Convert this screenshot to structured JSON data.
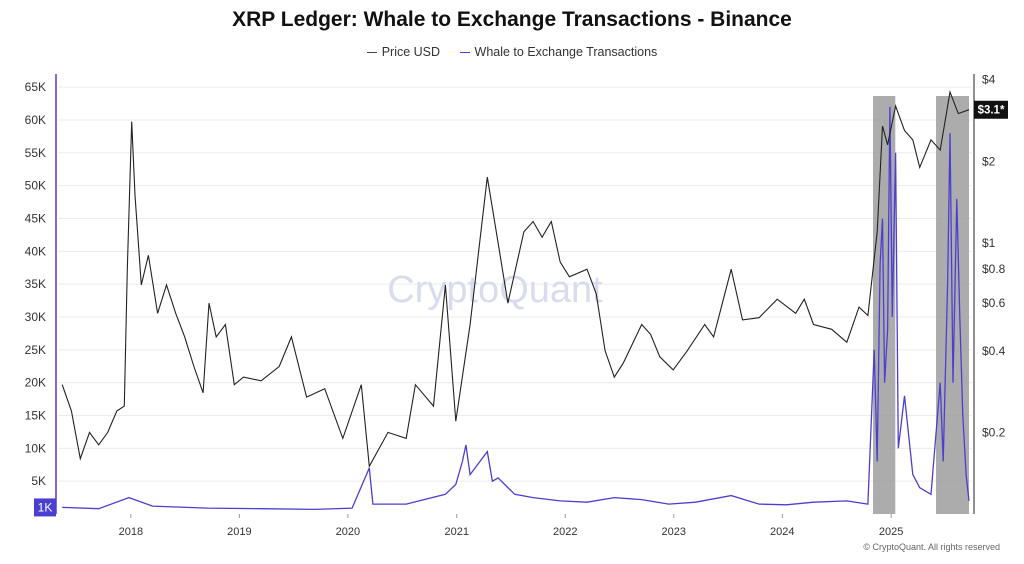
{
  "chart_data": {
    "type": "line",
    "title": "XRP Ledger: Whale to Exchange Transactions - Binance",
    "watermark": "CryptoQuant",
    "credit": "© CryptoQuant. All rights reserved",
    "legend_position": "top-center",
    "grid": true,
    "colors": {
      "price": "#222222",
      "whale": "#4b3fd1",
      "highlight": "#9e9e9e"
    },
    "x_axis": {
      "type": "date",
      "range": [
        "2017-05-01",
        "2025-09-30"
      ],
      "ticks": [
        "2018",
        "2019",
        "2020",
        "2021",
        "2022",
        "2023",
        "2024",
        "2025"
      ]
    },
    "left_axis": {
      "range": [
        0,
        67000
      ],
      "ticks": [
        "5K",
        "10K",
        "15K",
        "20K",
        "25K",
        "30K",
        "35K",
        "40K",
        "45K",
        "50K",
        "55K",
        "60K",
        "65K"
      ],
      "highlighted_tick": "1K"
    },
    "right_axis": {
      "scale": "log",
      "range": [
        0.1,
        4.2
      ],
      "ticks": [
        "$0.2",
        "$0.4",
        "$0.6",
        "$0.8",
        "$1",
        "$2",
        "$4"
      ],
      "last_value_label": "$3.1*"
    },
    "highlight_ranges": [
      [
        "2024-11-01",
        "2025-01-15"
      ],
      [
        "2025-06-01",
        "2025-09-20"
      ]
    ],
    "series": [
      {
        "name": "Price USD",
        "axis": "right",
        "values": [
          [
            "2017-05-15",
            0.3
          ],
          [
            "2017-06-15",
            0.24
          ],
          [
            "2017-07-15",
            0.16
          ],
          [
            "2017-08-15",
            0.2
          ],
          [
            "2017-09-15",
            0.18
          ],
          [
            "2017-10-15",
            0.2
          ],
          [
            "2017-11-15",
            0.24
          ],
          [
            "2017-12-10",
            0.25
          ],
          [
            "2017-12-20",
            0.8
          ],
          [
            "2018-01-04",
            2.8
          ],
          [
            "2018-01-15",
            1.5
          ],
          [
            "2018-02-05",
            0.7
          ],
          [
            "2018-03-01",
            0.9
          ],
          [
            "2018-04-01",
            0.55
          ],
          [
            "2018-05-01",
            0.7
          ],
          [
            "2018-06-01",
            0.55
          ],
          [
            "2018-07-01",
            0.45
          ],
          [
            "2018-08-01",
            0.35
          ],
          [
            "2018-09-01",
            0.28
          ],
          [
            "2018-09-21",
            0.6
          ],
          [
            "2018-10-15",
            0.45
          ],
          [
            "2018-11-15",
            0.5
          ],
          [
            "2018-12-15",
            0.3
          ],
          [
            "2019-01-15",
            0.32
          ],
          [
            "2019-03-15",
            0.31
          ],
          [
            "2019-05-15",
            0.35
          ],
          [
            "2019-06-25",
            0.45
          ],
          [
            "2019-08-15",
            0.27
          ],
          [
            "2019-10-15",
            0.29
          ],
          [
            "2019-12-15",
            0.19
          ],
          [
            "2020-02-15",
            0.3
          ],
          [
            "2020-03-13",
            0.15
          ],
          [
            "2020-05-15",
            0.2
          ],
          [
            "2020-07-15",
            0.19
          ],
          [
            "2020-08-15",
            0.3
          ],
          [
            "2020-10-15",
            0.25
          ],
          [
            "2020-11-24",
            0.7
          ],
          [
            "2020-12-29",
            0.22
          ],
          [
            "2021-02-15",
            0.5
          ],
          [
            "2021-04-14",
            1.75
          ],
          [
            "2021-05-20",
            1.0
          ],
          [
            "2021-06-22",
            0.6
          ],
          [
            "2021-08-15",
            1.1
          ],
          [
            "2021-09-15",
            1.2
          ],
          [
            "2021-10-15",
            1.05
          ],
          [
            "2021-11-15",
            1.2
          ],
          [
            "2021-12-15",
            0.85
          ],
          [
            "2022-01-15",
            0.75
          ],
          [
            "2022-03-15",
            0.8
          ],
          [
            "2022-04-15",
            0.65
          ],
          [
            "2022-05-15",
            0.4
          ],
          [
            "2022-06-15",
            0.32
          ],
          [
            "2022-07-15",
            0.36
          ],
          [
            "2022-09-15",
            0.5
          ],
          [
            "2022-10-15",
            0.46
          ],
          [
            "2022-11-15",
            0.38
          ],
          [
            "2022-12-30",
            0.34
          ],
          [
            "2023-02-15",
            0.4
          ],
          [
            "2023-04-15",
            0.5
          ],
          [
            "2023-05-15",
            0.45
          ],
          [
            "2023-07-13",
            0.8
          ],
          [
            "2023-08-20",
            0.52
          ],
          [
            "2023-10-15",
            0.53
          ],
          [
            "2023-12-15",
            0.62
          ],
          [
            "2024-02-15",
            0.55
          ],
          [
            "2024-03-15",
            0.62
          ],
          [
            "2024-04-15",
            0.5
          ],
          [
            "2024-06-15",
            0.48
          ],
          [
            "2024-08-05",
            0.43
          ],
          [
            "2024-09-15",
            0.58
          ],
          [
            "2024-10-15",
            0.54
          ],
          [
            "2024-11-15",
            1.1
          ],
          [
            "2024-12-03",
            2.7
          ],
          [
            "2024-12-20",
            2.3
          ],
          [
            "2025-01-16",
            3.2
          ],
          [
            "2025-02-15",
            2.6
          ],
          [
            "2025-03-15",
            2.4
          ],
          [
            "2025-04-07",
            1.9
          ],
          [
            "2025-05-15",
            2.4
          ],
          [
            "2025-06-15",
            2.2
          ],
          [
            "2025-07-18",
            3.6
          ],
          [
            "2025-08-15",
            3.0
          ],
          [
            "2025-09-20",
            3.1
          ]
        ]
      },
      {
        "name": "Whale to Exchange Transactions",
        "axis": "left",
        "values": [
          [
            "2017-05-15",
            1000
          ],
          [
            "2017-09-15",
            800
          ],
          [
            "2017-12-25",
            2500
          ],
          [
            "2018-03-15",
            1200
          ],
          [
            "2018-09-15",
            900
          ],
          [
            "2019-03-15",
            800
          ],
          [
            "2019-09-15",
            700
          ],
          [
            "2020-01-15",
            900
          ],
          [
            "2020-03-13",
            7000
          ],
          [
            "2020-03-25",
            1500
          ],
          [
            "2020-07-15",
            1500
          ],
          [
            "2020-11-24",
            3000
          ],
          [
            "2020-12-29",
            4500
          ],
          [
            "2021-01-20",
            8000
          ],
          [
            "2021-02-01",
            10500
          ],
          [
            "2021-02-15",
            6000
          ],
          [
            "2021-04-14",
            9500
          ],
          [
            "2021-05-01",
            5000
          ],
          [
            "2021-05-20",
            5500
          ],
          [
            "2021-07-15",
            3000
          ],
          [
            "2021-09-15",
            2500
          ],
          [
            "2021-12-15",
            2000
          ],
          [
            "2022-03-15",
            1800
          ],
          [
            "2022-06-15",
            2500
          ],
          [
            "2022-09-15",
            2200
          ],
          [
            "2022-12-15",
            1500
          ],
          [
            "2023-03-15",
            1800
          ],
          [
            "2023-07-13",
            2800
          ],
          [
            "2023-10-15",
            1500
          ],
          [
            "2024-01-15",
            1400
          ],
          [
            "2024-04-15",
            1800
          ],
          [
            "2024-08-05",
            2000
          ],
          [
            "2024-10-15",
            1500
          ],
          [
            "2024-11-05",
            25000
          ],
          [
            "2024-11-15",
            8000
          ],
          [
            "2024-11-25",
            38000
          ],
          [
            "2024-12-03",
            45000
          ],
          [
            "2024-12-10",
            20000
          ],
          [
            "2024-12-20",
            28000
          ],
          [
            "2024-12-28",
            62000
          ],
          [
            "2025-01-05",
            30000
          ],
          [
            "2025-01-16",
            55000
          ],
          [
            "2025-01-25",
            10000
          ],
          [
            "2025-02-15",
            18000
          ],
          [
            "2025-03-15",
            6000
          ],
          [
            "2025-04-07",
            4000
          ],
          [
            "2025-05-15",
            3000
          ],
          [
            "2025-06-15",
            20000
          ],
          [
            "2025-06-25",
            8000
          ],
          [
            "2025-07-10",
            35000
          ],
          [
            "2025-07-18",
            58000
          ],
          [
            "2025-07-28",
            20000
          ],
          [
            "2025-08-10",
            48000
          ],
          [
            "2025-08-20",
            30000
          ],
          [
            "2025-08-30",
            15000
          ],
          [
            "2025-09-10",
            6000
          ],
          [
            "2025-09-20",
            2000
          ]
        ]
      }
    ]
  }
}
